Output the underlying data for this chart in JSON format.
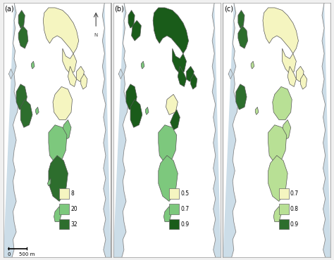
{
  "panel_labels": [
    "(a)",
    "(b)",
    "(c)"
  ],
  "sea_color": "#d4e3ef",
  "land_bg": "#ffffff",
  "coast_fill": "#ccdde8",
  "island_edge": "#555555",
  "legend_a": {
    "values": [
      "8",
      "20",
      "32"
    ],
    "colors": [
      "#f5f5c0",
      "#7dc87d",
      "#2d6e2d"
    ]
  },
  "legend_b": {
    "values": [
      "0.5",
      "0.7",
      "0.9"
    ],
    "colors": [
      "#f5f5c0",
      "#7dc87d",
      "#1a5c1a"
    ]
  },
  "legend_c": {
    "values": [
      "0.7",
      "0.8",
      "0.9"
    ],
    "colors": [
      "#f5f5c0",
      "#b8e095",
      "#2d6e2d"
    ]
  },
  "scale_text": "500 m",
  "fig_bg": "#f0f0f0"
}
